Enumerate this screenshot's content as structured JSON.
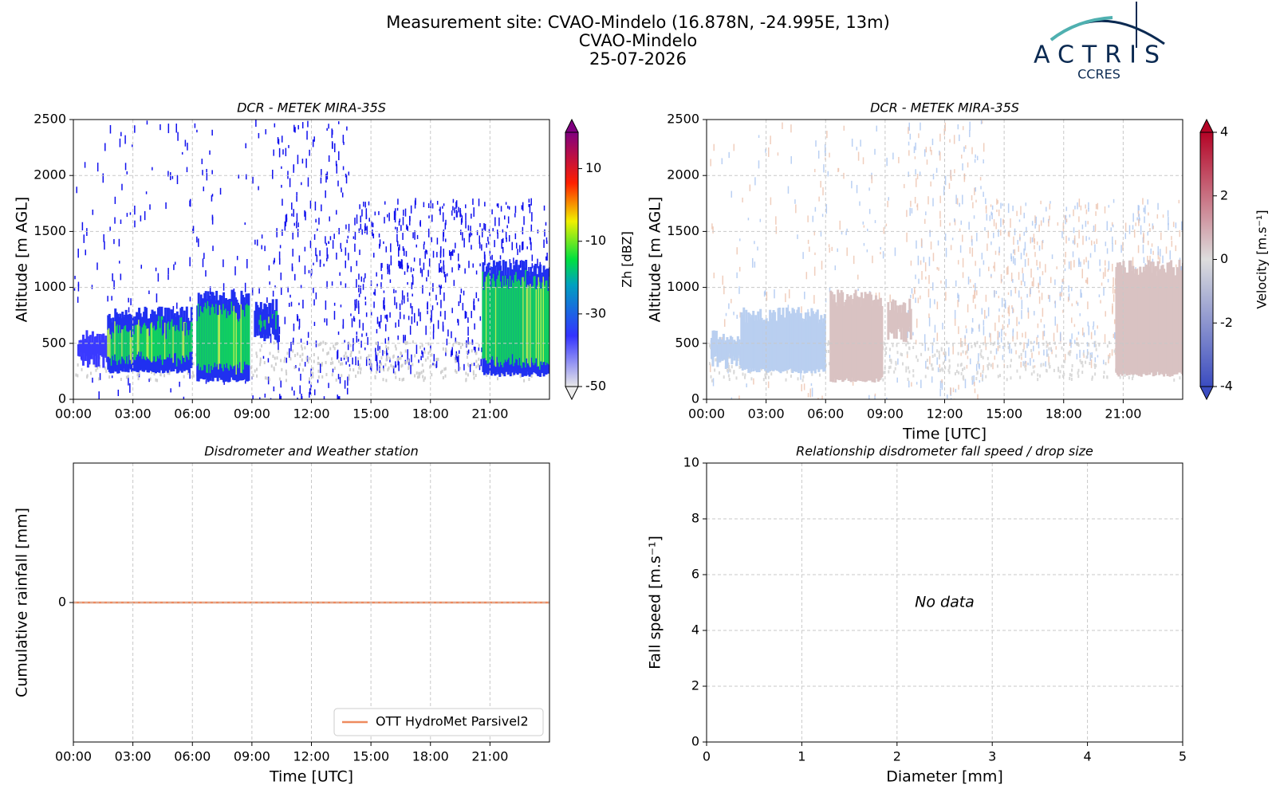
{
  "header": {
    "lines": [
      "Measurement site: CVAO-Mindelo (16.878N, -24.995E, 13m)",
      "CVAO-Mindelo",
      "25-07-2026"
    ],
    "logo": "ACTRIS",
    "logo_sub": "CCRES"
  },
  "chart_data": [
    {
      "type": "heatmap",
      "title": "DCR - METEK MIRA-35S",
      "ylabel": "Altitude [m AGL]",
      "xlim": [
        0,
        24
      ],
      "xticks": [
        {
          "value": 0,
          "label": "00:00"
        },
        {
          "value": 3,
          "label": "03:00"
        },
        {
          "value": 6,
          "label": "06:00"
        },
        {
          "value": 9,
          "label": "09:00"
        },
        {
          "value": 12,
          "label": "12:00"
        },
        {
          "value": 15,
          "label": "15:00"
        },
        {
          "value": 18,
          "label": "18:00"
        },
        {
          "value": 21,
          "label": "21:00"
        }
      ],
      "ylim": [
        0,
        2500
      ],
      "yticks": [
        0,
        500,
        1000,
        1500,
        2000,
        2500
      ],
      "grid": true,
      "colorbar": {
        "label": "Zh [dBZ]",
        "clim": [
          -50,
          20
        ],
        "ticks": [
          -50,
          -30,
          -10,
          10
        ],
        "colormap": "reflectivity"
      }
    },
    {
      "type": "heatmap",
      "title": "DCR - METEK MIRA-35S",
      "ylabel": "Altitude [m AGL]",
      "xlabel": "Time [UTC]",
      "xlim": [
        0,
        24
      ],
      "xticks": [
        {
          "value": 0,
          "label": "00:00"
        },
        {
          "value": 3,
          "label": "03:00"
        },
        {
          "value": 6,
          "label": "06:00"
        },
        {
          "value": 9,
          "label": "09:00"
        },
        {
          "value": 12,
          "label": "12:00"
        },
        {
          "value": 15,
          "label": "15:00"
        },
        {
          "value": 18,
          "label": "18:00"
        },
        {
          "value": 21,
          "label": "21:00"
        }
      ],
      "ylim": [
        0,
        2500
      ],
      "yticks": [
        0,
        500,
        1000,
        1500,
        2000,
        2500
      ],
      "grid": true,
      "colorbar": {
        "label": "Velocity [m.s⁻¹]",
        "clim": [
          -4,
          4
        ],
        "ticks": [
          -4,
          -2,
          0,
          2,
          4
        ],
        "colormap": "velocity"
      }
    },
    {
      "type": "line",
      "title": "Disdrometer and Weather station",
      "ylabel": "Cumulative rainfall [mm]",
      "xlabel": "Time [UTC]",
      "xlim": [
        0,
        24
      ],
      "xticks": [
        {
          "value": 0,
          "label": "00:00"
        },
        {
          "value": 3,
          "label": "03:00"
        },
        {
          "value": 6,
          "label": "06:00"
        },
        {
          "value": 9,
          "label": "09:00"
        },
        {
          "value": 12,
          "label": "12:00"
        },
        {
          "value": 15,
          "label": "15:00"
        },
        {
          "value": 18,
          "label": "18:00"
        },
        {
          "value": 21,
          "label": "21:00"
        }
      ],
      "ylim": [
        -0.055,
        0.055
      ],
      "yticks": [
        0
      ],
      "grid": true,
      "legend": "lower right",
      "x": [
        0,
        24
      ],
      "series": [
        {
          "name": "OTT HydroMet Parsivel2",
          "color": "#ee8a5e",
          "values": [
            0,
            0
          ]
        }
      ]
    },
    {
      "type": "scatter",
      "title": "Relationship disdrometer fall speed / drop size",
      "ylabel": "Fall speed [m.s⁻¹]",
      "xlabel": "Diameter [mm]",
      "xlim": [
        0,
        5
      ],
      "xticks": [
        0,
        1,
        2,
        3,
        4,
        5
      ],
      "ylim": [
        0,
        10
      ],
      "yticks": [
        0,
        2,
        4,
        6,
        8,
        10
      ],
      "grid": true,
      "annotation": "No data"
    }
  ]
}
